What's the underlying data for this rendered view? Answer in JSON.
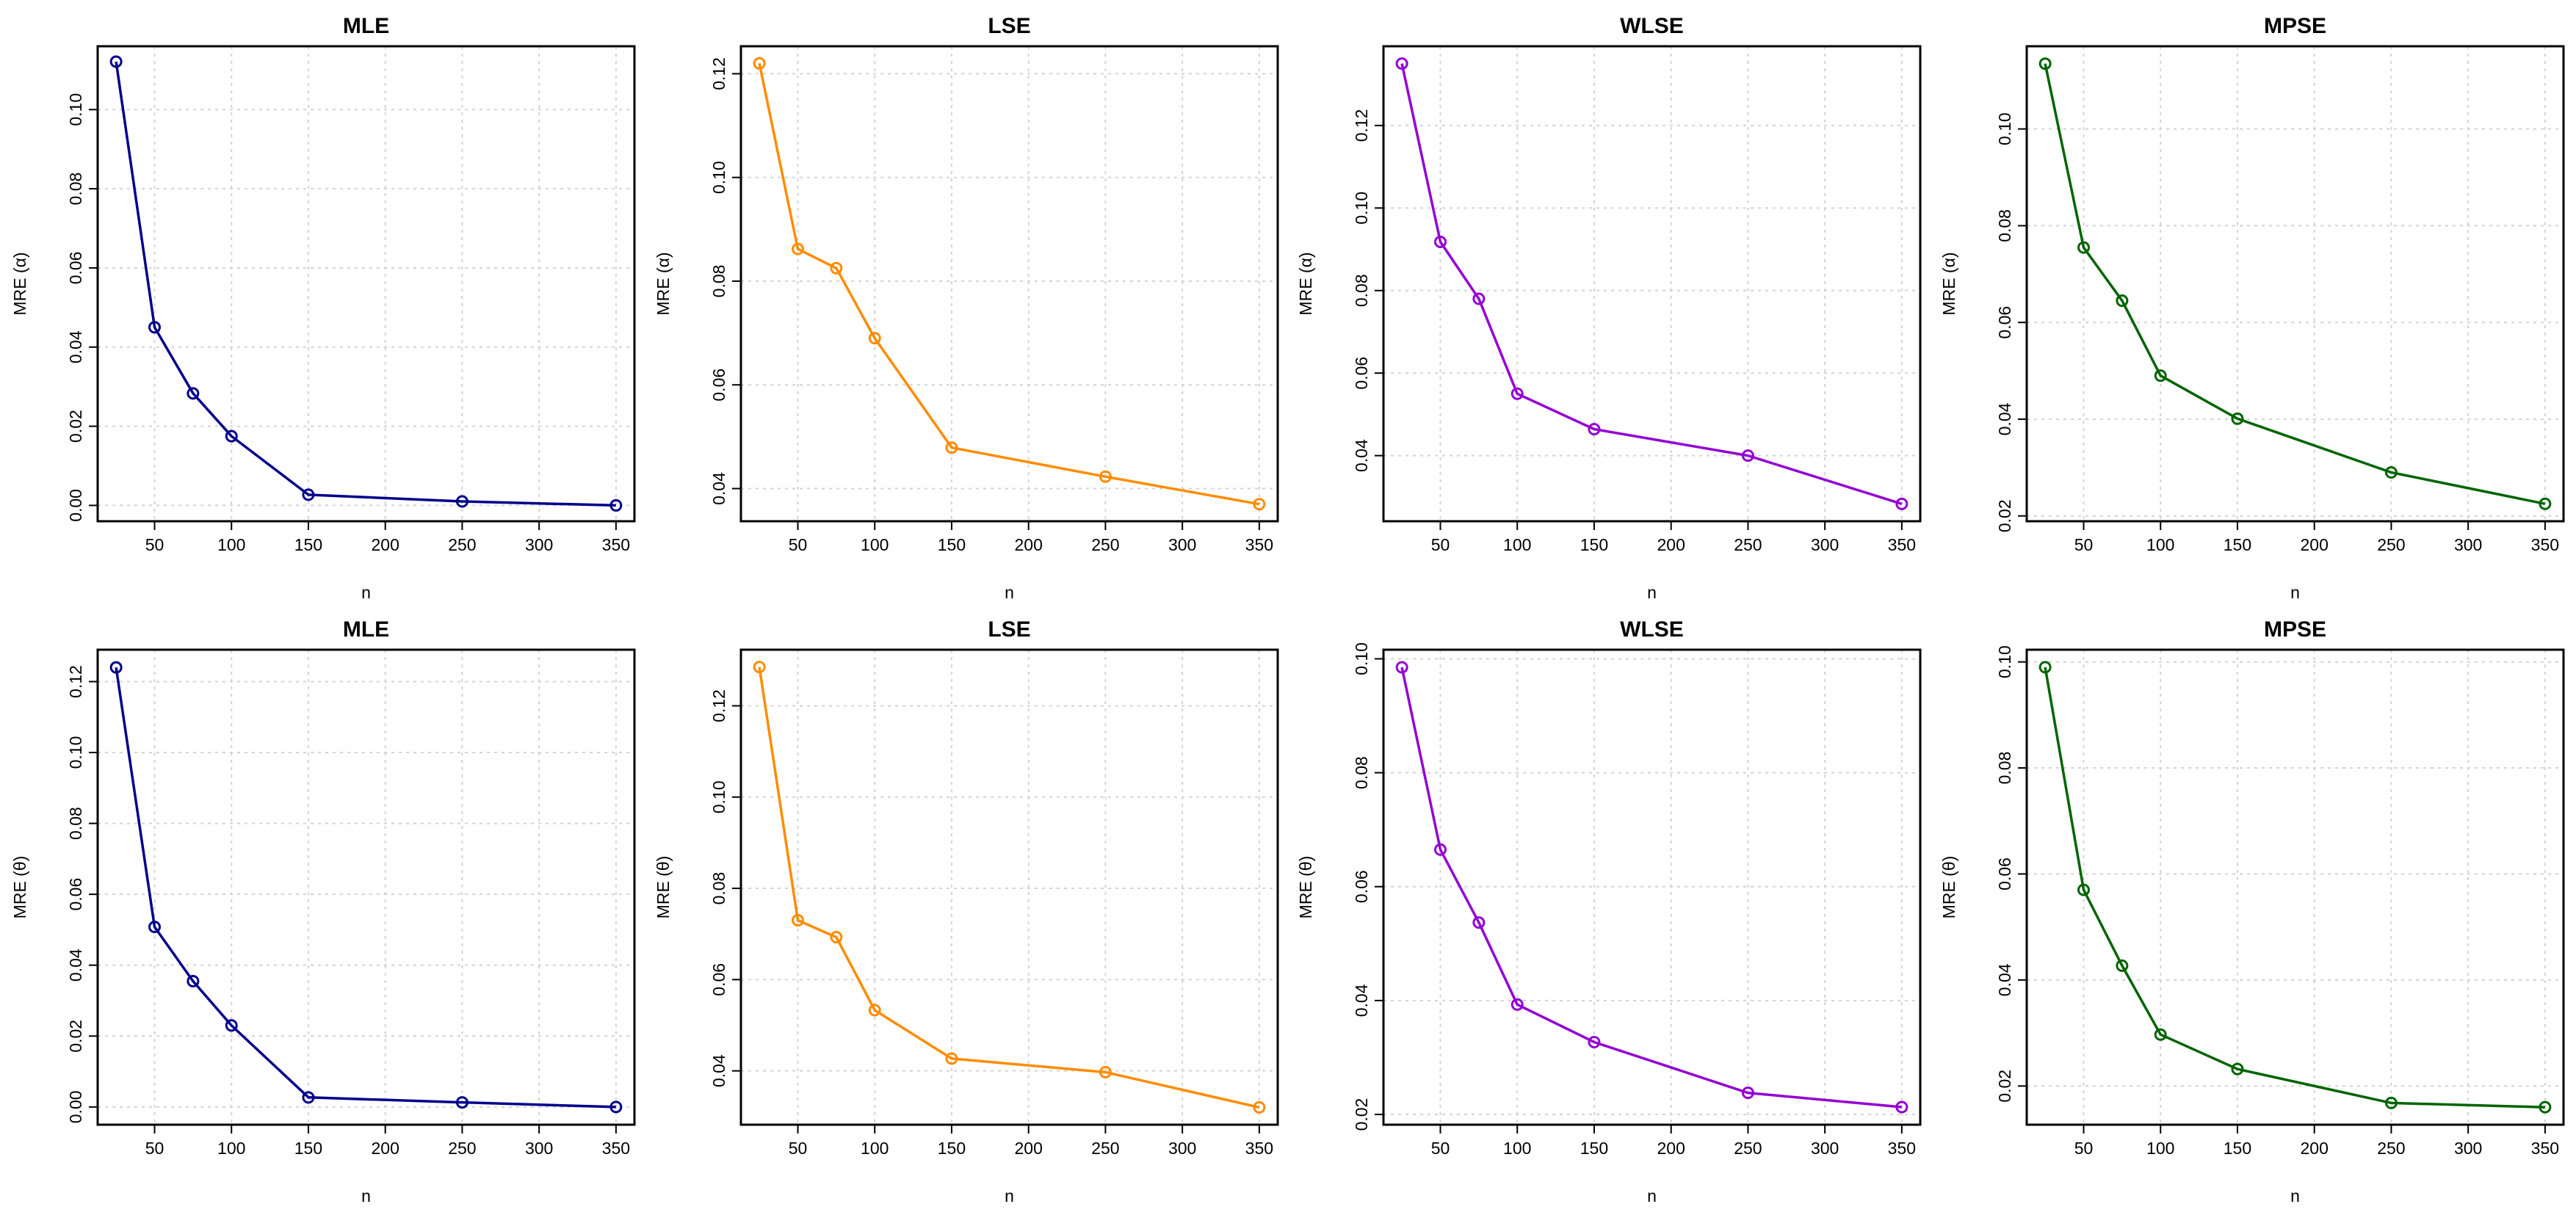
{
  "chart_data": [
    {
      "type": "line",
      "title": "MLE",
      "xlabel": "n",
      "ylabel": "MRE (α)",
      "color": "#00008B",
      "x": [
        25,
        50,
        75,
        100,
        150,
        250,
        350
      ],
      "values": [
        0.1121,
        0.045,
        0.0283,
        0.0175,
        0.0027,
        0.001,
        0.0
      ],
      "xlim": [
        13,
        362
      ],
      "ylim": [
        -0.004,
        0.116
      ],
      "xticks": [
        50,
        100,
        150,
        200,
        250,
        300,
        350
      ],
      "yticks": [
        0.0,
        0.02,
        0.04,
        0.06,
        0.08,
        0.1
      ],
      "yticklabels": [
        "0.00",
        "0.02",
        "0.04",
        "0.06",
        "0.08",
        "0.10"
      ],
      "grid": true
    },
    {
      "type": "line",
      "title": "LSE",
      "xlabel": "n",
      "ylabel": "MRE (α)",
      "color": "#FF8C00",
      "x": [
        25,
        50,
        75,
        100,
        150,
        250,
        350
      ],
      "values": [
        0.122,
        0.0862,
        0.0825,
        0.069,
        0.0479,
        0.0423,
        0.037
      ],
      "xlim": [
        13,
        362
      ],
      "ylim": [
        0.0337,
        0.1253
      ],
      "xticks": [
        50,
        100,
        150,
        200,
        250,
        300,
        350
      ],
      "yticks": [
        0.04,
        0.06,
        0.08,
        0.1,
        0.12
      ],
      "yticklabels": [
        "0.04",
        "0.06",
        "0.08",
        "0.10",
        "0.12"
      ],
      "grid": true
    },
    {
      "type": "line",
      "title": "WLSE",
      "xlabel": "n",
      "ylabel": "MRE (α)",
      "color": "#9400D3",
      "x": [
        25,
        50,
        75,
        100,
        150,
        250,
        350
      ],
      "values": [
        0.135,
        0.0918,
        0.078,
        0.055,
        0.0464,
        0.04,
        0.0283
      ],
      "xlim": [
        13,
        362
      ],
      "ylim": [
        0.0241,
        0.1392
      ],
      "xticks": [
        50,
        100,
        150,
        200,
        250,
        300,
        350
      ],
      "yticks": [
        0.04,
        0.06,
        0.08,
        0.1,
        0.12
      ],
      "yticklabels": [
        "0.04",
        "0.06",
        "0.08",
        "0.10",
        "0.12"
      ],
      "grid": true
    },
    {
      "type": "line",
      "title": "MPSE",
      "xlabel": "n",
      "ylabel": "MRE (α)",
      "color": "#006400",
      "x": [
        25,
        50,
        75,
        100,
        150,
        250,
        350
      ],
      "values": [
        0.1135,
        0.0755,
        0.0645,
        0.049,
        0.0401,
        0.029,
        0.0225
      ],
      "xlim": [
        13,
        362
      ],
      "ylim": [
        0.0189,
        0.1171
      ],
      "xticks": [
        50,
        100,
        150,
        200,
        250,
        300,
        350
      ],
      "yticks": [
        0.02,
        0.04,
        0.06,
        0.08,
        0.1
      ],
      "yticklabels": [
        "0.02",
        "0.04",
        "0.06",
        "0.08",
        "0.10"
      ],
      "grid": true
    },
    {
      "type": "line",
      "title": "MLE",
      "xlabel": "n",
      "ylabel": "MRE (θ)",
      "color": "#00008B",
      "x": [
        25,
        50,
        75,
        100,
        150,
        250,
        350
      ],
      "values": [
        0.124,
        0.0508,
        0.0355,
        0.023,
        0.0027,
        0.0013,
        0.0
      ],
      "xlim": [
        13,
        362
      ],
      "ylim": [
        -0.005,
        0.129
      ],
      "xticks": [
        50,
        100,
        150,
        200,
        250,
        300,
        350
      ],
      "yticks": [
        0.0,
        0.02,
        0.04,
        0.06,
        0.08,
        0.1,
        0.12
      ],
      "yticklabels": [
        "0.00",
        "0.02",
        "0.04",
        "0.06",
        "0.08",
        "0.10",
        "0.12"
      ],
      "grid": true
    },
    {
      "type": "line",
      "title": "LSE",
      "xlabel": "n",
      "ylabel": "MRE (θ)",
      "color": "#FF8C00",
      "x": [
        25,
        50,
        75,
        100,
        150,
        250,
        350
      ],
      "values": [
        0.1285,
        0.073,
        0.0693,
        0.0533,
        0.0427,
        0.0397,
        0.032
      ],
      "xlim": [
        13,
        362
      ],
      "ylim": [
        0.0282,
        0.1323
      ],
      "xticks": [
        50,
        100,
        150,
        200,
        250,
        300,
        350
      ],
      "yticks": [
        0.04,
        0.06,
        0.08,
        0.1,
        0.12
      ],
      "yticklabels": [
        "0.04",
        "0.06",
        "0.08",
        "0.10",
        "0.12"
      ],
      "grid": true
    },
    {
      "type": "line",
      "title": "WLSE",
      "xlabel": "n",
      "ylabel": "MRE (θ)",
      "color": "#9400D3",
      "x": [
        25,
        50,
        75,
        100,
        150,
        250,
        350
      ],
      "values": [
        0.0985,
        0.0665,
        0.0537,
        0.0393,
        0.0327,
        0.0238,
        0.0213
      ],
      "xlim": [
        13,
        362
      ],
      "ylim": [
        0.0182,
        0.1016
      ],
      "xticks": [
        50,
        100,
        150,
        200,
        250,
        300,
        350
      ],
      "yticks": [
        0.02,
        0.04,
        0.06,
        0.08,
        0.1
      ],
      "yticklabels": [
        "0.02",
        "0.04",
        "0.06",
        "0.08",
        "0.10"
      ],
      "grid": true
    },
    {
      "type": "line",
      "title": "MPSE",
      "xlabel": "n",
      "ylabel": "MRE (θ)",
      "color": "#006400",
      "x": [
        25,
        50,
        75,
        100,
        150,
        250,
        350
      ],
      "values": [
        0.099,
        0.057,
        0.0427,
        0.0297,
        0.0232,
        0.0168,
        0.016
      ],
      "xlim": [
        13,
        362
      ],
      "ylim": [
        0.0127,
        0.1023
      ],
      "xticks": [
        50,
        100,
        150,
        200,
        250,
        300,
        350
      ],
      "yticks": [
        0.02,
        0.04,
        0.06,
        0.08,
        0.1
      ],
      "yticklabels": [
        "0.02",
        "0.04",
        "0.06",
        "0.08",
        "0.10"
      ],
      "grid": true
    }
  ]
}
